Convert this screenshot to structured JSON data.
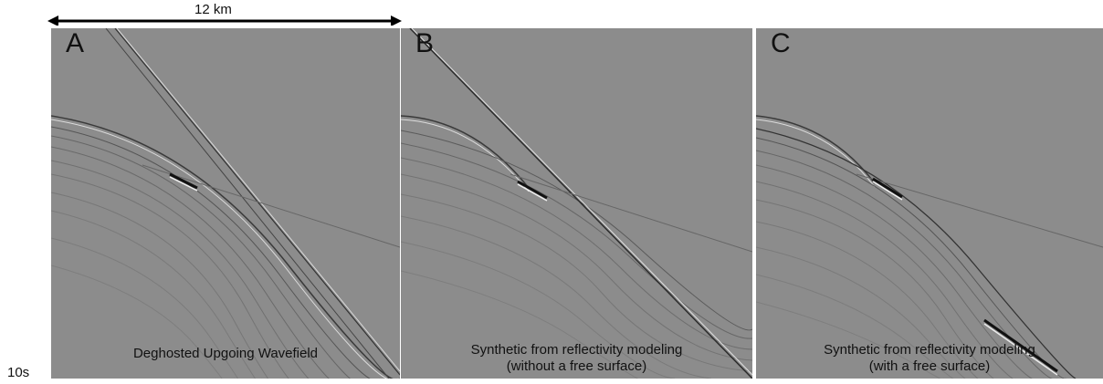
{
  "scale": {
    "label": "12 km"
  },
  "time_label": "10s",
  "panels": [
    {
      "letter": "A",
      "caption": [
        "Deghosted Upgoing Wavefield"
      ]
    },
    {
      "letter": "B",
      "caption": [
        "Synthetic from reflectivity modeling",
        "(without a  free surface)"
      ]
    },
    {
      "letter": "C",
      "caption": [
        "Synthetic from reflectivity modeling",
        "(with a free surface)"
      ]
    }
  ],
  "colors": {
    "background": "#8c8c8c",
    "text": "#111111"
  }
}
